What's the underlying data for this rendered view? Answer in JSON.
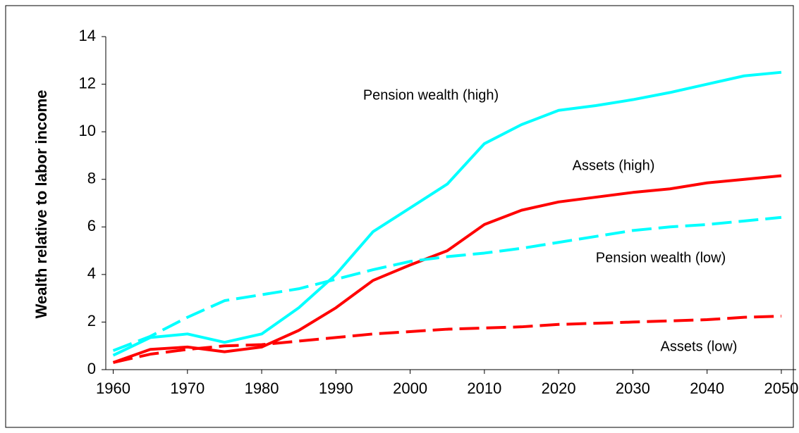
{
  "chart_data": {
    "type": "line",
    "ylabel": "Wealth relative to labor income",
    "x": [
      1960,
      1965,
      1970,
      1975,
      1980,
      1985,
      1990,
      1995,
      2000,
      2005,
      2010,
      2015,
      2020,
      2025,
      2030,
      2035,
      2040,
      2045,
      2050
    ],
    "series": [
      {
        "name": "Pension wealth (high)",
        "color": "#00ffff",
        "dashed": false,
        "values": [
          0.6,
          1.35,
          1.5,
          1.15,
          1.5,
          2.6,
          4.0,
          5.8,
          6.8,
          7.8,
          9.5,
          10.3,
          10.9,
          11.1,
          11.35,
          11.65,
          12.0,
          12.35,
          12.5
        ]
      },
      {
        "name": "Assets (high)",
        "color": "#ff0000",
        "dashed": false,
        "values": [
          0.3,
          0.85,
          0.95,
          0.75,
          0.95,
          1.65,
          2.6,
          3.75,
          4.4,
          5.0,
          6.1,
          6.7,
          7.05,
          7.25,
          7.45,
          7.6,
          7.85,
          8.0,
          8.15
        ]
      },
      {
        "name": "Pension wealth (low)",
        "color": "#00ffff",
        "dashed": true,
        "values": [
          0.8,
          1.4,
          2.2,
          2.9,
          3.15,
          3.4,
          3.8,
          4.2,
          4.55,
          4.75,
          4.9,
          5.1,
          5.35,
          5.6,
          5.85,
          6.0,
          6.1,
          6.25,
          6.4
        ]
      },
      {
        "name": "Assets (low)",
        "color": "#ff0000",
        "dashed": true,
        "values": [
          0.3,
          0.65,
          0.85,
          1.0,
          1.05,
          1.2,
          1.35,
          1.5,
          1.6,
          1.7,
          1.75,
          1.8,
          1.9,
          1.95,
          2.0,
          2.05,
          2.1,
          2.2,
          2.25
        ]
      }
    ],
    "xlim": [
      1959,
      2052
    ],
    "xticks": [
      1960,
      1970,
      1980,
      1990,
      2000,
      2010,
      2020,
      2030,
      2040,
      2050
    ],
    "ylim": [
      0,
      14
    ],
    "yticks": [
      0,
      2,
      4,
      6,
      8,
      10,
      12,
      14
    ],
    "grid": false
  }
}
